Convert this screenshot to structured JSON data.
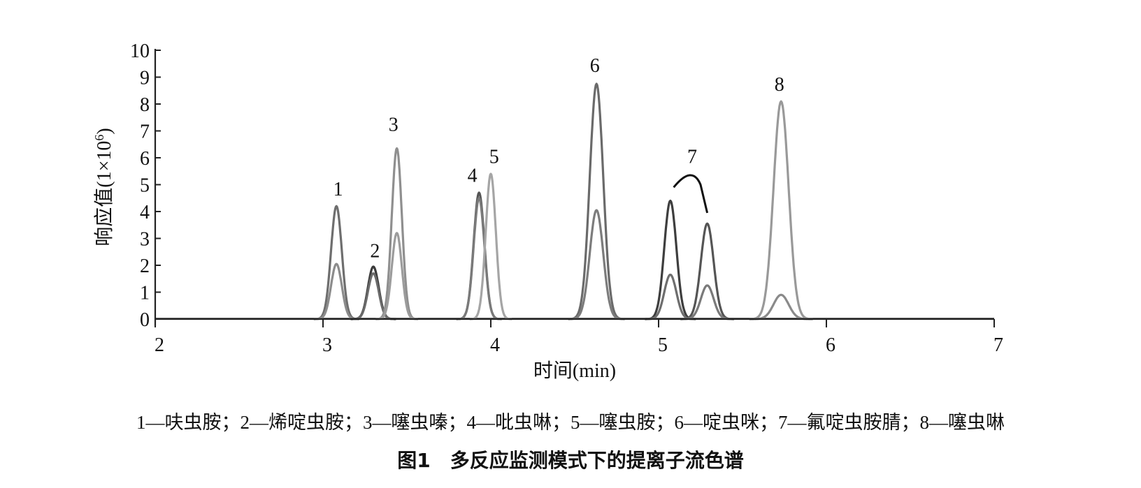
{
  "chart_data": {
    "type": "line",
    "xlabel": "时间(min)",
    "ylabel": "响应值(1×10",
    "ylabel_exp": "6",
    "ylabel_close": ")",
    "xlim": [
      2,
      7
    ],
    "ylim": [
      0,
      10
    ],
    "xticks": [
      "2",
      "3",
      "4",
      "5",
      "6",
      "7"
    ],
    "yticks": [
      "0",
      "1",
      "2",
      "3",
      "4",
      "5",
      "6",
      "7",
      "8",
      "9",
      "10"
    ],
    "peak_labels": [
      {
        "text": "1",
        "x": 3.09,
        "y": 4.6
      },
      {
        "text": "2",
        "x": 3.31,
        "y": 2.3
      },
      {
        "text": "3",
        "x": 3.42,
        "y": 7.0
      },
      {
        "text": "4",
        "x": 3.89,
        "y": 5.1
      },
      {
        "text": "5",
        "x": 4.02,
        "y": 5.8
      },
      {
        "text": "6",
        "x": 4.62,
        "y": 9.2
      },
      {
        "text": "7",
        "x": 5.2,
        "y": 5.8
      },
      {
        "text": "8",
        "x": 5.72,
        "y": 8.5
      }
    ],
    "peaks": [
      {
        "center": 3.08,
        "sigma": 0.032,
        "heights": [
          4.2,
          2.05
        ],
        "colors": [
          "#6e6e6e",
          "#8c8c8c"
        ]
      },
      {
        "center": 3.3,
        "sigma": 0.032,
        "heights": [
          1.95,
          1.7
        ],
        "colors": [
          "#3a3a3a",
          "#6a6a6a"
        ]
      },
      {
        "center": 3.44,
        "sigma": 0.03,
        "heights": [
          6.35,
          3.2
        ],
        "colors": [
          "#8f8f8f",
          "#9c9c9c"
        ]
      },
      {
        "center": 3.93,
        "sigma": 0.032,
        "heights": [
          4.7,
          4.5
        ],
        "colors": [
          "#555555",
          "#7a7a7a"
        ]
      },
      {
        "center": 4.0,
        "sigma": 0.03,
        "heights": [
          5.4
        ],
        "colors": [
          "#a5a5a5"
        ]
      },
      {
        "center": 4.63,
        "sigma": 0.04,
        "heights": [
          8.75,
          4.05
        ],
        "colors": [
          "#6a6a6a",
          "#7c7c7c"
        ]
      },
      {
        "center": 5.07,
        "sigma": 0.036,
        "heights": [
          4.4,
          1.65
        ],
        "colors": [
          "#3e3e3e",
          "#6e6e6e"
        ]
      },
      {
        "center": 5.29,
        "sigma": 0.038,
        "heights": [
          3.55,
          1.25
        ],
        "colors": [
          "#555555",
          "#7a7a7a"
        ]
      },
      {
        "center": 5.73,
        "sigma": 0.045,
        "heights": [
          8.1,
          0.9
        ],
        "colors": [
          "#999999",
          "#8a8a8a"
        ]
      }
    ],
    "grid": false
  },
  "legend_text": "1—呋虫胺；2—烯啶虫胺；3—噻虫嗪；4—吡虫啉；5—噻虫胺；6—啶虫咪；7—氟啶虫胺腈；8—噻虫啉",
  "caption": "图1　多反应监测模式下的提离子流色谱"
}
